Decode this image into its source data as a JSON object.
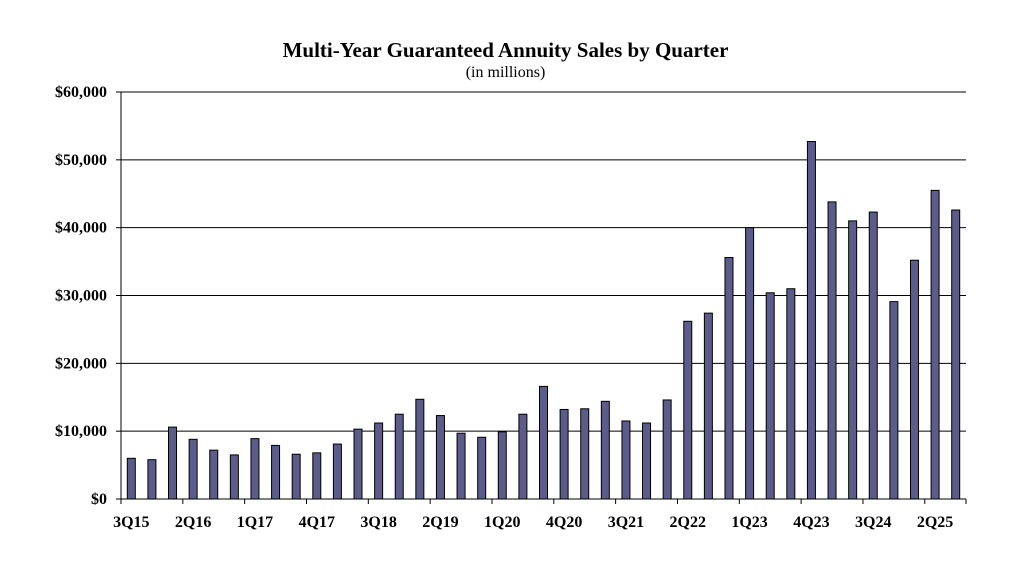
{
  "chart_data": {
    "type": "bar",
    "title": "Multi-Year Guaranteed Annuity Sales by Quarter",
    "subtitle": "(in millions)",
    "xlabel": "",
    "ylabel": "",
    "ylim": [
      0,
      60000
    ],
    "yticks": [
      0,
      10000,
      20000,
      30000,
      40000,
      50000,
      60000
    ],
    "ytick_labels": [
      "$0",
      "$10,000",
      "$20,000",
      "$30,000",
      "$40,000",
      "$50,000",
      "$60,000"
    ],
    "grid": true,
    "legend": "none",
    "bar_color": "#5c5c8a",
    "categories": [
      "3Q15",
      "4Q15",
      "1Q16",
      "2Q16",
      "3Q16",
      "4Q16",
      "1Q17",
      "2Q17",
      "3Q17",
      "4Q17",
      "1Q18",
      "2Q18",
      "3Q18",
      "4Q18",
      "1Q19",
      "2Q19",
      "3Q19",
      "4Q19",
      "1Q20",
      "2Q20",
      "3Q20",
      "4Q20",
      "1Q21",
      "2Q21",
      "3Q21",
      "4Q21",
      "1Q22",
      "2Q22",
      "3Q22",
      "4Q22",
      "1Q23",
      "2Q23",
      "3Q23",
      "4Q23",
      "1Q24",
      "2Q24",
      "3Q24",
      "4Q24",
      "1Q25",
      "2Q25",
      "3Q25"
    ],
    "xtick_labels": [
      "3Q15",
      "2Q16",
      "1Q17",
      "4Q17",
      "3Q18",
      "2Q19",
      "1Q20",
      "4Q20",
      "3Q21",
      "2Q22",
      "1Q23",
      "4Q23",
      "3Q24",
      "2Q25"
    ],
    "values": [
      6000,
      5800,
      10600,
      8800,
      7200,
      6500,
      8900,
      7900,
      6600,
      6800,
      8100,
      10300,
      11200,
      12500,
      14700,
      12300,
      9700,
      9100,
      9900,
      12500,
      16600,
      13200,
      13300,
      14400,
      11500,
      11200,
      14600,
      26200,
      27400,
      35600,
      40000,
      30400,
      31000,
      52700,
      43800,
      41000,
      42300,
      29100,
      35200,
      45500,
      42600
    ]
  }
}
